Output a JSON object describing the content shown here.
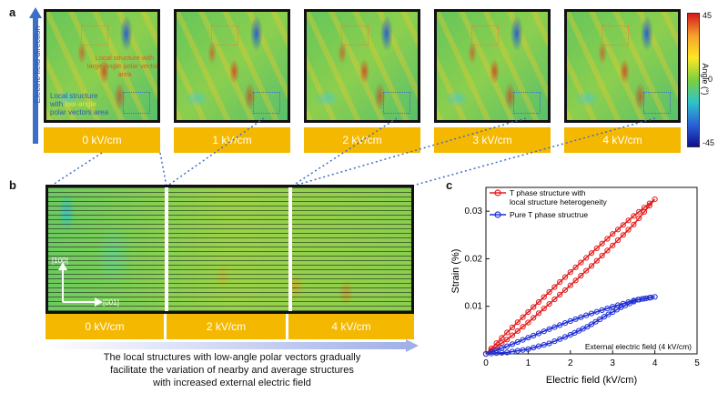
{
  "panel_a": {
    "letter": "a",
    "arrow_label": "Electric field direction",
    "annotation_large": "Local structure with large-angle polar vectors area",
    "annotation_low_line1": "Local structure",
    "annotation_low_with": "with ",
    "annotation_low_highlight": "low-angle",
    "annotation_low_line3": "polar vectors area",
    "fields": [
      "0 kV/cm",
      "1 kV/cm",
      "2 kV/cm",
      "3 kV/cm",
      "4 kV/cm"
    ],
    "colorbar": {
      "label": "Angle (°)",
      "ticks": [
        "45",
        "0",
        "-45"
      ],
      "colors": [
        "#d7191c",
        "#f7a12b",
        "#fde725",
        "#7ccf3e",
        "#2ec4c9",
        "#2a63d8",
        "#10108f"
      ]
    }
  },
  "panel_b": {
    "letter": "b",
    "axis_100": "[100]",
    "axis_001": "[001]",
    "fields": [
      "0 kV/cm",
      "2 kV/cm",
      "4 kV/cm"
    ],
    "caption_lines": [
      "The local structures with low-angle polar vectors gradually",
      "facilitate the variation of nearby and average structures",
      "with increased external electric field"
    ]
  },
  "panel_c": {
    "letter": "c",
    "annotation": "External electric field (4 kV/cm)",
    "chart_data": {
      "type": "line",
      "title": "",
      "xlabel": "Electric field (kV/cm)",
      "ylabel": "Strain (%)",
      "xlim": [
        0,
        5
      ],
      "ylim": [
        0,
        0.035
      ],
      "xticks": [
        "0",
        "1",
        "2",
        "3",
        "4",
        "5"
      ],
      "yticks": [
        "0.01",
        "0.02",
        "0.03"
      ],
      "legend_position": "top-left",
      "series": [
        {
          "name": "T phase structure with local structure heterogeneity",
          "legend_lines": [
            "T phase structure with",
            "local structure heterogeneity"
          ],
          "color": "#e51e1e",
          "loop": true,
          "upper": [
            [
              0,
              0
            ],
            [
              0.5,
              0.0045
            ],
            [
              1,
              0.0088
            ],
            [
              1.5,
              0.013
            ],
            [
              2,
              0.0172
            ],
            [
              2.5,
              0.0212
            ],
            [
              3,
              0.0252
            ],
            [
              3.5,
              0.029
            ],
            [
              4,
              0.0325
            ]
          ],
          "lower": [
            [
              4,
              0.0325
            ],
            [
              3.5,
              0.0272
            ],
            [
              3,
              0.0228
            ],
            [
              2.5,
              0.0185
            ],
            [
              2,
              0.0144
            ],
            [
              1.5,
              0.0105
            ],
            [
              1,
              0.0066
            ],
            [
              0.5,
              0.003
            ],
            [
              0,
              0
            ]
          ]
        },
        {
          "name": "Pure T phase structrue",
          "legend_lines": [
            "Pure T phase structrue"
          ],
          "color": "#1f2fd6",
          "loop": true,
          "upper": [
            [
              0,
              0
            ],
            [
              0.5,
              0.0016
            ],
            [
              1,
              0.0034
            ],
            [
              1.5,
              0.0052
            ],
            [
              2,
              0.0069
            ],
            [
              2.5,
              0.0085
            ],
            [
              3,
              0.0099
            ],
            [
              3.5,
              0.0112
            ],
            [
              4,
              0.012
            ]
          ],
          "lower": [
            [
              4,
              0.012
            ],
            [
              3.6,
              0.0114
            ],
            [
              3.2,
              0.0098
            ],
            [
              2.8,
              0.0078
            ],
            [
              2.4,
              0.0057
            ],
            [
              2,
              0.004
            ],
            [
              1.5,
              0.0022
            ],
            [
              1,
              0.001
            ],
            [
              0.5,
              0.0003
            ],
            [
              0,
              0
            ]
          ]
        }
      ]
    }
  }
}
